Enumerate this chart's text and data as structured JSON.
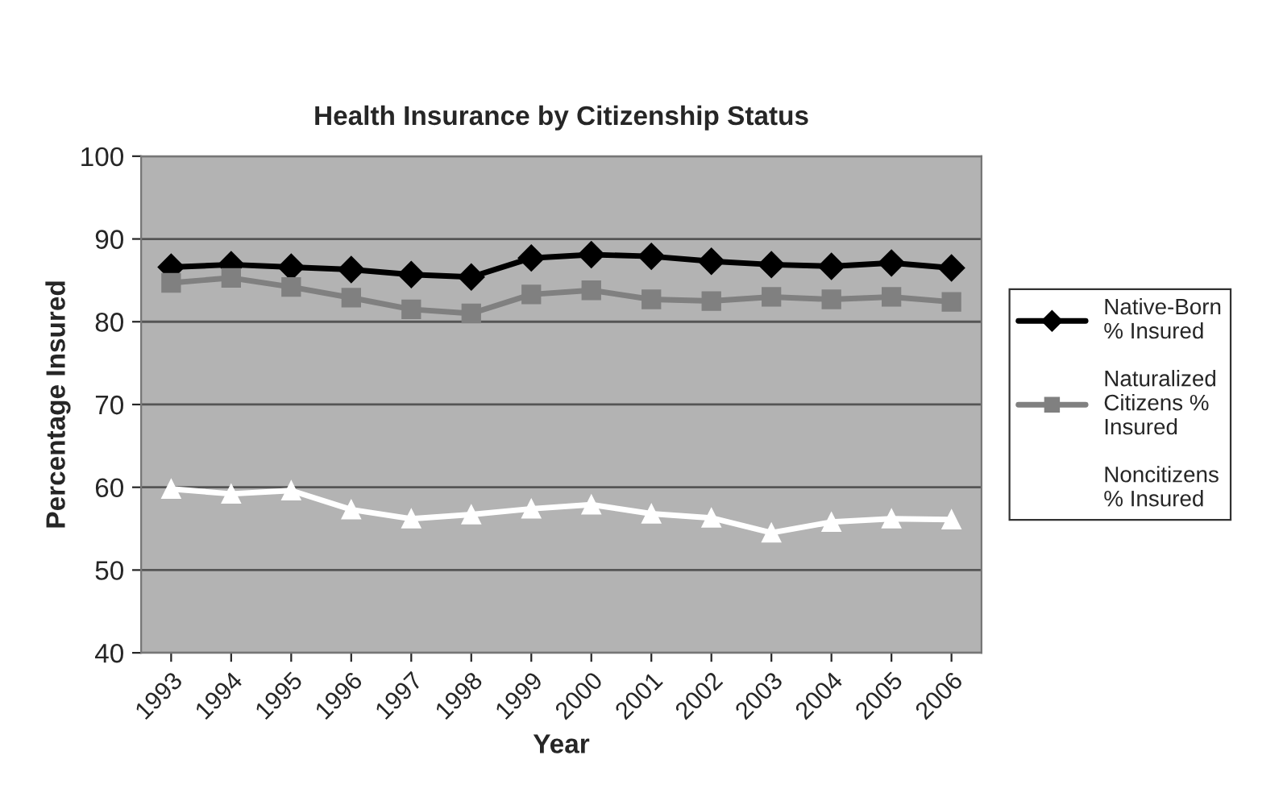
{
  "chart_data": {
    "type": "line",
    "title": "Health Insurance by Citizenship Status",
    "xlabel": "Year",
    "ylabel": "Percentage Insured",
    "categories": [
      "1993",
      "1994",
      "1995",
      "1996",
      "1997",
      "1998",
      "1999",
      "2000",
      "2001",
      "2002",
      "2003",
      "2004",
      "2005",
      "2006"
    ],
    "series": [
      {
        "name": "Native-Born % Insured",
        "color": "#000000",
        "marker": "diamond",
        "values": [
          86.6,
          86.9,
          86.6,
          86.3,
          85.7,
          85.4,
          87.7,
          88.1,
          87.9,
          87.3,
          86.9,
          86.7,
          87.1,
          86.5
        ]
      },
      {
        "name": "Naturalized Citizens % Insured",
        "color": "#808080",
        "marker": "square",
        "values": [
          84.7,
          85.3,
          84.2,
          82.9,
          81.5,
          81.0,
          83.3,
          83.8,
          82.7,
          82.5,
          83.0,
          82.7,
          83.0,
          82.4
        ]
      },
      {
        "name": "Noncitizens % Insured",
        "color": "#ffffff",
        "marker": "triangle",
        "values": [
          59.8,
          59.2,
          59.6,
          57.3,
          56.2,
          56.7,
          57.4,
          57.9,
          56.8,
          56.3,
          54.5,
          55.8,
          56.2,
          56.1
        ]
      }
    ],
    "ylim": [
      40,
      100
    ],
    "yticks": [
      40,
      50,
      60,
      70,
      80,
      90,
      100
    ],
    "grid": "y",
    "legend": "right",
    "line_style": "solid"
  }
}
